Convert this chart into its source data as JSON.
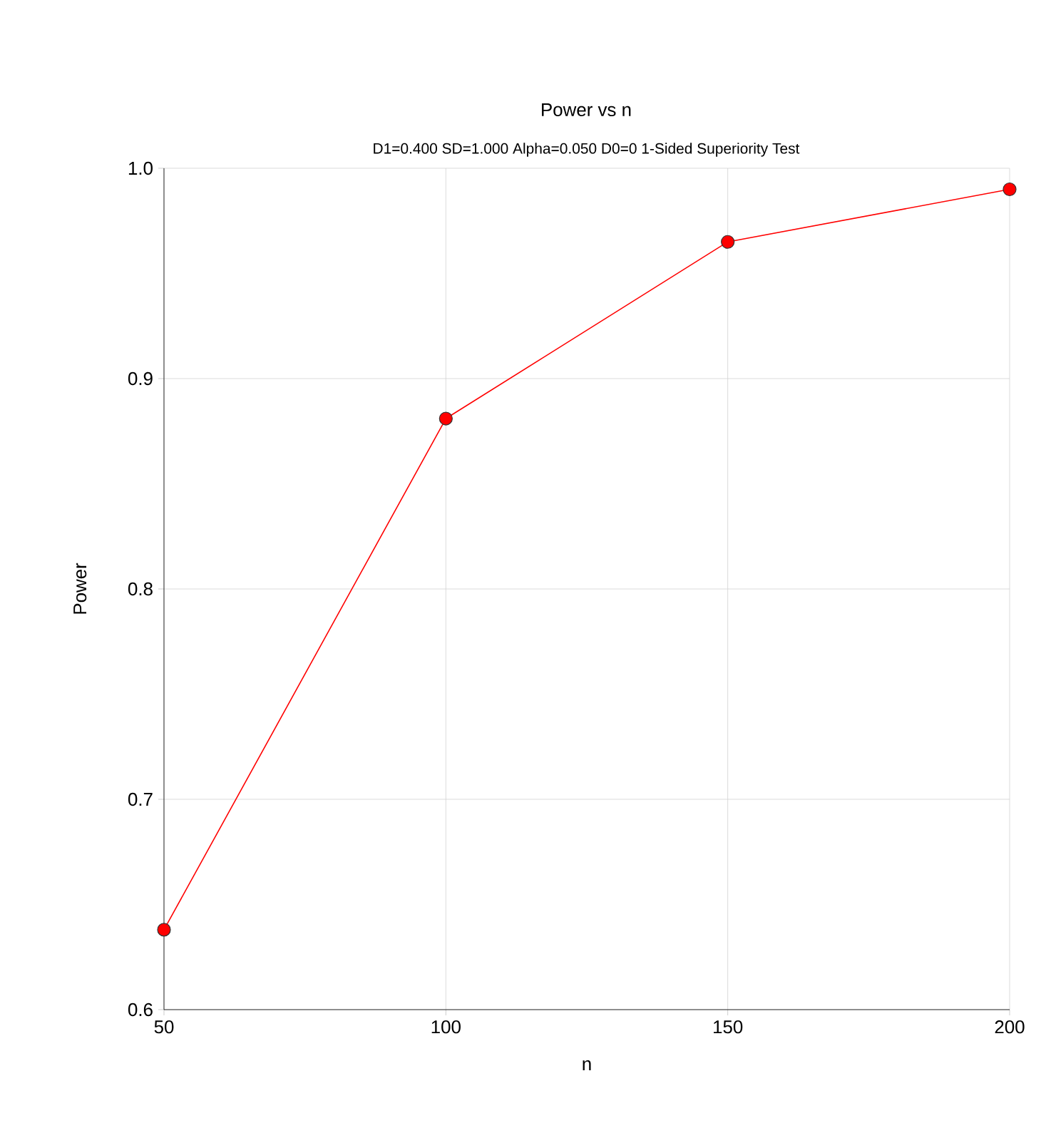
{
  "chart_data": {
    "type": "line",
    "title": "Power vs n",
    "subtitle": "D1=0.400 SD=1.000 Alpha=0.050 D0=0 1-Sided Superiority Test",
    "xlabel": "n",
    "ylabel": "Power",
    "x": [
      50,
      100,
      150,
      200
    ],
    "series": [
      {
        "color": "#ff0000",
        "values": [
          0.638,
          0.881,
          0.965,
          0.99
        ]
      }
    ],
    "xlim": [
      50,
      200
    ],
    "ylim": [
      0.6,
      1.0
    ],
    "xticks": [
      50,
      100,
      150,
      200
    ],
    "yticks": [
      {
        "value": 0.6,
        "label": "0.6"
      },
      {
        "value": 0.7,
        "label": "0.7"
      },
      {
        "value": 0.8,
        "label": "0.8"
      },
      {
        "value": 0.9,
        "label": "0.9"
      },
      {
        "value": 1.0,
        "label": "1.0"
      }
    ],
    "grid": true,
    "marker": "circle",
    "line_style": "solid"
  }
}
